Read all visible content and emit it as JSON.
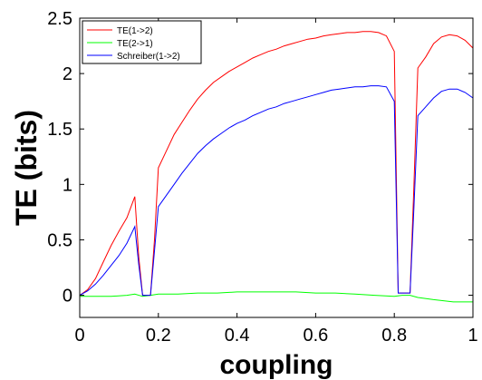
{
  "chart_data": {
    "type": "line",
    "title": "",
    "xlabel": "coupling",
    "ylabel": "TE (bits)",
    "xlim": [
      0,
      1
    ],
    "ylim": [
      -0.2,
      2.5
    ],
    "xticks": [
      "0",
      "0.2",
      "0.4",
      "0.6",
      "0.8",
      "1"
    ],
    "yticks": [
      "0",
      "0.5",
      "1",
      "1.5",
      "2",
      "2.5"
    ],
    "grid": false,
    "legend_position": "top-left",
    "series": [
      {
        "name": "TE(1->2)",
        "color": "#ff0000",
        "x": [
          0,
          0.02,
          0.04,
          0.06,
          0.08,
          0.1,
          0.12,
          0.14,
          0.15,
          0.16,
          0.17,
          0.18,
          0.19,
          0.2,
          0.22,
          0.24,
          0.26,
          0.28,
          0.3,
          0.32,
          0.34,
          0.36,
          0.38,
          0.4,
          0.42,
          0.44,
          0.46,
          0.48,
          0.5,
          0.52,
          0.54,
          0.56,
          0.58,
          0.6,
          0.62,
          0.64,
          0.66,
          0.68,
          0.7,
          0.72,
          0.74,
          0.76,
          0.78,
          0.8,
          0.81,
          0.82,
          0.83,
          0.84,
          0.85,
          0.86,
          0.88,
          0.9,
          0.92,
          0.94,
          0.96,
          0.98,
          1.0
        ],
        "y": [
          0,
          0.05,
          0.15,
          0.3,
          0.45,
          0.58,
          0.7,
          0.89,
          0.35,
          0.0,
          0.0,
          0.0,
          0.5,
          1.15,
          1.3,
          1.45,
          1.56,
          1.67,
          1.77,
          1.85,
          1.92,
          1.97,
          2.02,
          2.06,
          2.1,
          2.14,
          2.17,
          2.2,
          2.22,
          2.25,
          2.27,
          2.29,
          2.31,
          2.32,
          2.34,
          2.35,
          2.36,
          2.37,
          2.37,
          2.38,
          2.38,
          2.37,
          2.34,
          2.2,
          0.02,
          0.02,
          0.02,
          0.02,
          1.0,
          2.05,
          2.15,
          2.27,
          2.33,
          2.35,
          2.34,
          2.3,
          2.23
        ]
      },
      {
        "name": "TE(2->1)",
        "color": "#00ff00",
        "x": [
          0,
          0.04,
          0.08,
          0.12,
          0.14,
          0.16,
          0.18,
          0.2,
          0.25,
          0.3,
          0.35,
          0.4,
          0.45,
          0.5,
          0.55,
          0.6,
          0.65,
          0.7,
          0.75,
          0.8,
          0.82,
          0.84,
          0.86,
          0.9,
          0.95,
          1.0
        ],
        "y": [
          -0.01,
          -0.01,
          -0.01,
          0.0,
          0.01,
          -0.01,
          0.0,
          0.01,
          0.01,
          0.02,
          0.02,
          0.03,
          0.03,
          0.03,
          0.03,
          0.02,
          0.02,
          0.01,
          0.0,
          -0.01,
          0.0,
          0.0,
          -0.02,
          -0.04,
          -0.06,
          -0.06
        ]
      },
      {
        "name": "Schreiber(1->2)",
        "color": "#0000ff",
        "x": [
          0,
          0.02,
          0.04,
          0.06,
          0.08,
          0.1,
          0.12,
          0.14,
          0.15,
          0.16,
          0.17,
          0.18,
          0.19,
          0.2,
          0.22,
          0.24,
          0.26,
          0.28,
          0.3,
          0.32,
          0.34,
          0.36,
          0.38,
          0.4,
          0.42,
          0.44,
          0.46,
          0.48,
          0.5,
          0.52,
          0.54,
          0.56,
          0.58,
          0.6,
          0.62,
          0.64,
          0.66,
          0.68,
          0.7,
          0.72,
          0.74,
          0.76,
          0.78,
          0.8,
          0.81,
          0.82,
          0.83,
          0.84,
          0.85,
          0.86,
          0.88,
          0.9,
          0.92,
          0.94,
          0.96,
          0.98,
          1.0
        ],
        "y": [
          0,
          0.04,
          0.1,
          0.18,
          0.27,
          0.36,
          0.47,
          0.62,
          0.28,
          0.0,
          0.0,
          0.0,
          0.4,
          0.8,
          0.9,
          1.0,
          1.1,
          1.19,
          1.28,
          1.35,
          1.41,
          1.46,
          1.51,
          1.55,
          1.58,
          1.62,
          1.65,
          1.68,
          1.7,
          1.73,
          1.75,
          1.77,
          1.79,
          1.81,
          1.83,
          1.85,
          1.86,
          1.87,
          1.88,
          1.88,
          1.89,
          1.89,
          1.88,
          1.75,
          0.02,
          0.02,
          0.02,
          0.02,
          0.8,
          1.62,
          1.7,
          1.78,
          1.84,
          1.86,
          1.86,
          1.83,
          1.78
        ]
      }
    ]
  }
}
